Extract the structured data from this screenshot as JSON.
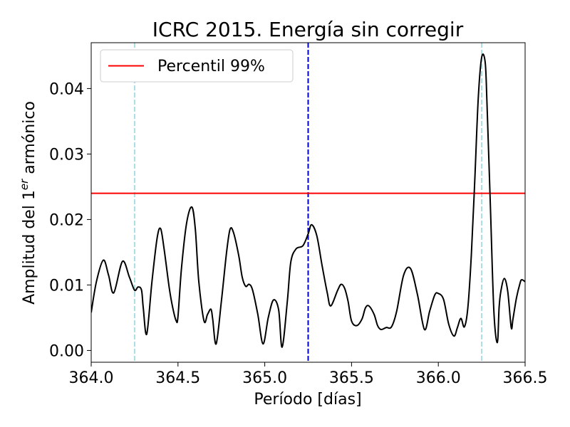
{
  "chart_data": {
    "type": "line",
    "title": "ICRC 2015. Energía sin corregir",
    "xlabel": "Período [días]",
    "ylabel_main": "Amplitud del 1",
    "ylabel_sup": "er",
    "ylabel_tail": " armónico",
    "xlim": [
      364.0,
      366.5
    ],
    "ylim": [
      -0.0018,
      0.047
    ],
    "xticks": [
      364.0,
      364.5,
      365.0,
      365.5,
      366.0,
      366.5
    ],
    "xtick_labels": [
      "364.0",
      "364.5",
      "365.0",
      "365.5",
      "366.0",
      "366.5"
    ],
    "yticks": [
      0.0,
      0.01,
      0.02,
      0.03,
      0.04
    ],
    "ytick_labels": [
      "0.00",
      "0.01",
      "0.02",
      "0.03",
      "0.04"
    ],
    "legend": {
      "position": "top-left",
      "entries": [
        {
          "label": "Percentil 99%",
          "color": "#ff0000"
        }
      ]
    },
    "grid": false,
    "series": [
      {
        "color": "#000000",
        "x": [
          364.0,
          364.03,
          364.07,
          364.1,
          364.13,
          364.18,
          364.22,
          364.25,
          364.27,
          364.29,
          364.3,
          364.32,
          364.35,
          364.38,
          364.4,
          364.42,
          364.45,
          364.47,
          364.49,
          364.5,
          364.52,
          364.55,
          364.58,
          364.6,
          364.62,
          364.65,
          364.67,
          364.69,
          364.7,
          364.72,
          364.75,
          364.78,
          364.8,
          364.82,
          364.85,
          364.87,
          364.89,
          364.91,
          364.93,
          364.96,
          364.99,
          365.02,
          365.05,
          365.08,
          365.1,
          365.13,
          365.15,
          365.18,
          365.22,
          365.25,
          365.27,
          365.3,
          365.33,
          365.36,
          365.38,
          365.42,
          365.44,
          365.46,
          365.48,
          365.5,
          365.53,
          365.56,
          365.58,
          365.6,
          365.63,
          365.65,
          365.67,
          365.7,
          365.73,
          365.76,
          365.8,
          365.84,
          365.88,
          365.92,
          365.95,
          365.98,
          366.0,
          366.03,
          366.06,
          366.09,
          366.11,
          366.13,
          366.15,
          366.17,
          366.19,
          366.21,
          366.23,
          366.25,
          366.27,
          366.28,
          366.3,
          366.32,
          366.34,
          366.35,
          366.36,
          366.38,
          366.4,
          366.42,
          366.43,
          366.45,
          366.47,
          366.48,
          366.5
        ],
        "y": [
          0.0058,
          0.0105,
          0.0138,
          0.0115,
          0.0088,
          0.0136,
          0.0112,
          0.0092,
          0.0097,
          0.0092,
          0.0065,
          0.0025,
          0.0105,
          0.0172,
          0.0186,
          0.0155,
          0.0095,
          0.0065,
          0.0045,
          0.0052,
          0.0125,
          0.0195,
          0.0219,
          0.0185,
          0.0105,
          0.0045,
          0.0055,
          0.0063,
          0.0048,
          0.001,
          0.0075,
          0.015,
          0.0185,
          0.018,
          0.0145,
          0.0112,
          0.0098,
          0.0101,
          0.0092,
          0.0055,
          0.001,
          0.005,
          0.0077,
          0.0062,
          0.0005,
          0.0075,
          0.0135,
          0.0155,
          0.016,
          0.0178,
          0.0192,
          0.0175,
          0.013,
          0.0088,
          0.0068,
          0.0092,
          0.0101,
          0.0095,
          0.0075,
          0.0045,
          0.0038,
          0.0048,
          0.0065,
          0.0068,
          0.0055,
          0.0038,
          0.0032,
          0.0035,
          0.0036,
          0.006,
          0.0115,
          0.0125,
          0.0085,
          0.0032,
          0.006,
          0.0085,
          0.0087,
          0.0078,
          0.004,
          0.0022,
          0.0035,
          0.0049,
          0.0036,
          0.0065,
          0.0145,
          0.026,
          0.0385,
          0.0448,
          0.044,
          0.038,
          0.022,
          0.006,
          0.0012,
          0.0065,
          0.009,
          0.011,
          0.009,
          0.0035,
          0.0048,
          0.008,
          0.0102,
          0.0108,
          0.0105
        ]
      }
    ],
    "hlines": [
      {
        "y": 0.024,
        "color": "#ff0000",
        "label": "Percentil 99%"
      }
    ],
    "vlines": [
      {
        "x": 364.25,
        "color": "#aadde3",
        "style": "dashed"
      },
      {
        "x": 365.25,
        "color": "#0000cc",
        "style": "dashed"
      },
      {
        "x": 366.25,
        "color": "#aadde3",
        "style": "dashed"
      }
    ]
  }
}
